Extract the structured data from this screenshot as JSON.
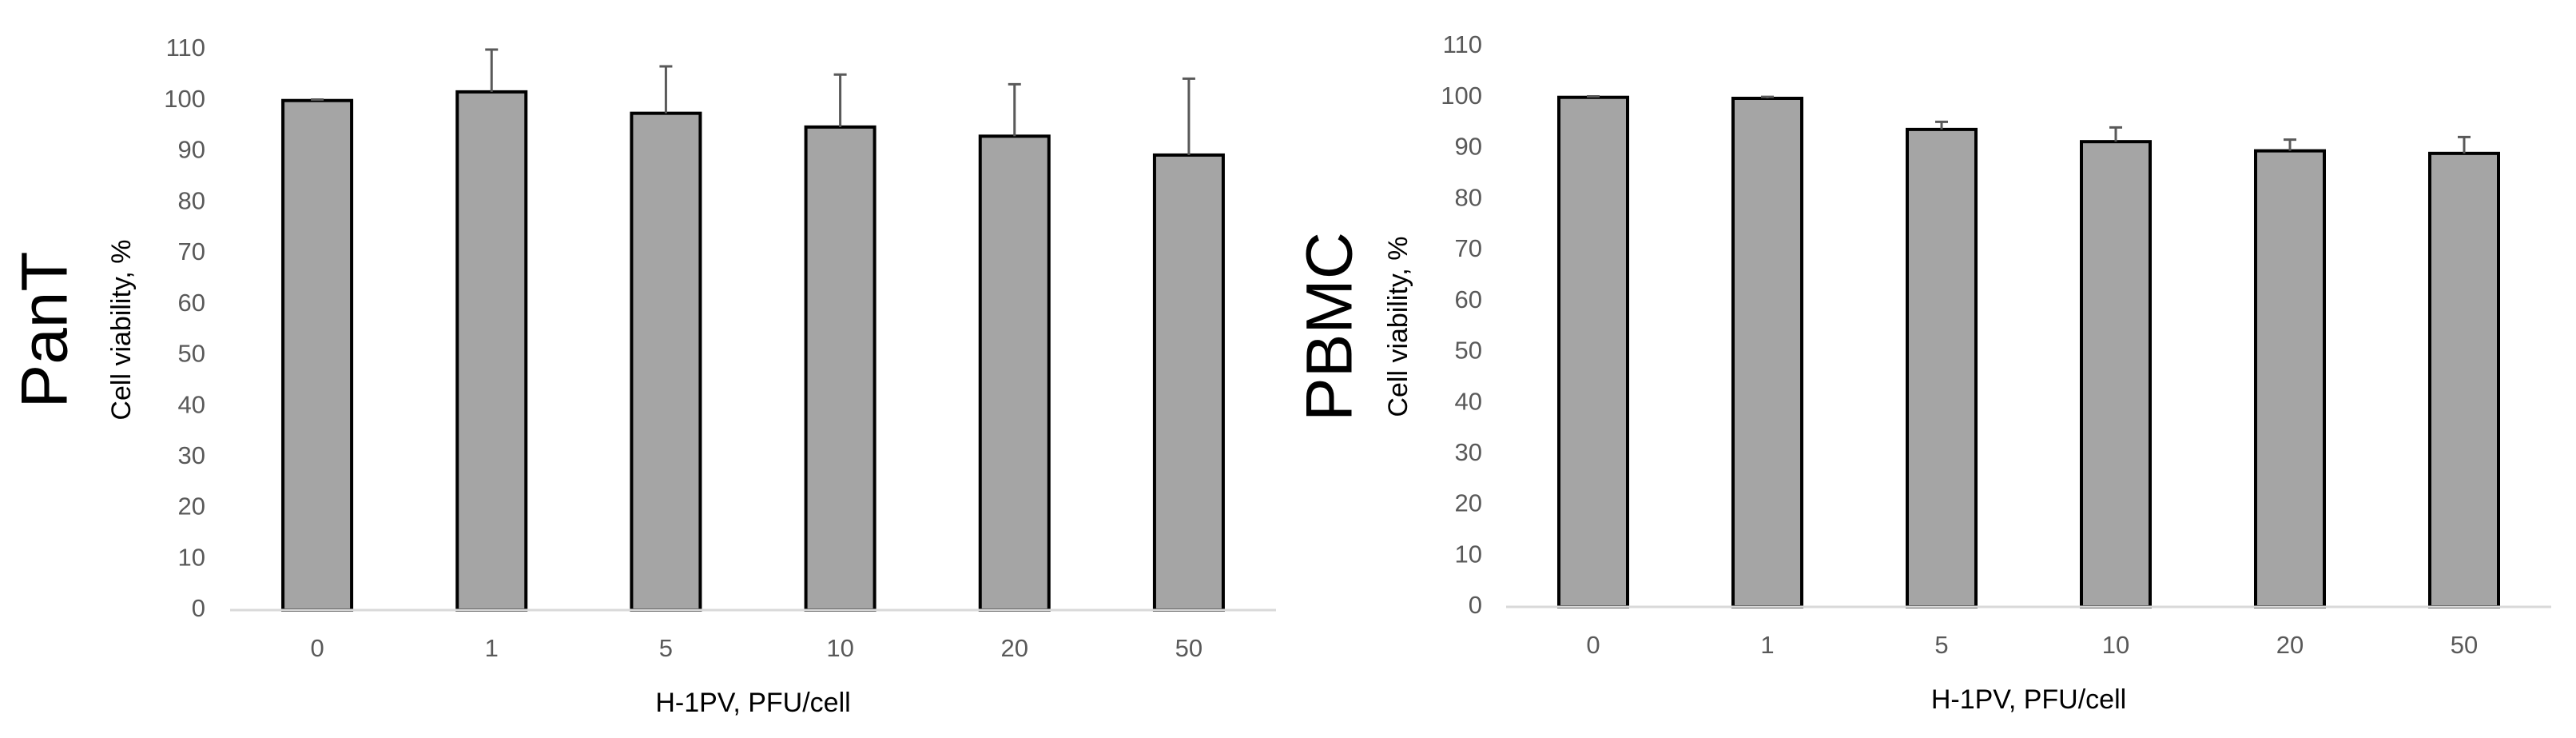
{
  "chart_data": [
    {
      "type": "bar",
      "title": "PanT",
      "y_label": "Cell viability, %",
      "x_label": "H-1PV, PFU/cell",
      "categories": [
        "0",
        "1",
        "5",
        "10",
        "20",
        "50"
      ],
      "values": [
        100,
        101.7,
        97.5,
        94.8,
        93,
        89.3
      ],
      "errors": [
        0.2,
        8.3,
        9.2,
        10.3,
        10.2,
        15
      ],
      "color": "#a5a5a5",
      "ylim": [
        0,
        110
      ],
      "yticks": [
        0,
        10,
        20,
        30,
        40,
        50,
        60,
        70,
        80,
        90,
        100,
        110
      ],
      "grid": false
    },
    {
      "type": "bar",
      "title": "PBMC",
      "y_label": "Cell viability, %",
      "x_label": "H-1PV, PFU/cell",
      "categories": [
        "0",
        "1",
        "5",
        "10",
        "20",
        "50"
      ],
      "values": [
        100,
        99.8,
        93.7,
        91.3,
        89.5,
        89
      ],
      "errors": [
        0.2,
        0.3,
        1.5,
        2.8,
        2.2,
        3.2
      ],
      "color": "#a5a5a5",
      "ylim": [
        0,
        110
      ],
      "yticks": [
        0,
        10,
        20,
        30,
        40,
        50,
        60,
        70,
        80,
        90,
        100,
        110
      ],
      "grid": false
    }
  ]
}
